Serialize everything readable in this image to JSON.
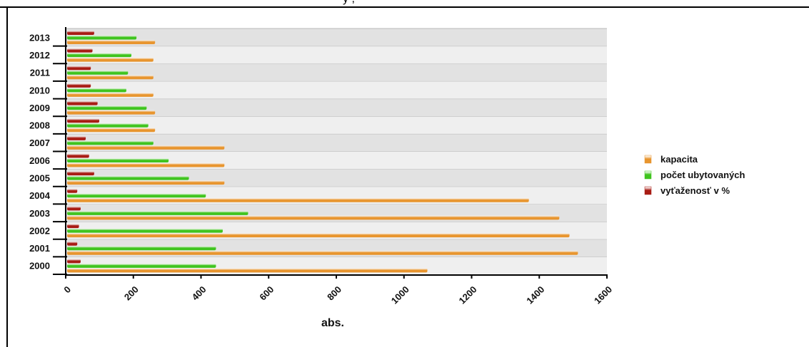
{
  "window": {
    "title_fragment": "y    ,",
    "border_color": "#000000"
  },
  "chart_data": {
    "type": "bar",
    "orientation": "horizontal",
    "categories": [
      "2000",
      "2001",
      "2002",
      "2003",
      "2004",
      "2005",
      "2006",
      "2007",
      "2008",
      "2009",
      "2010",
      "2011",
      "2012",
      "2013"
    ],
    "series": [
      {
        "name": "kapacita",
        "color": "#e8952e",
        "values": [
          1065,
          1510,
          1485,
          1455,
          1365,
          465,
          465,
          465,
          260,
          260,
          255,
          255,
          255,
          260
        ]
      },
      {
        "name": "počet ubytovaných",
        "color": "#3fc41e",
        "values": [
          440,
          440,
          460,
          535,
          410,
          360,
          300,
          255,
          240,
          235,
          175,
          180,
          190,
          205
        ]
      },
      {
        "name": "vyťaženosť v %",
        "color": "#a81c14",
        "values": [
          40,
          30,
          35,
          40,
          30,
          80,
          65,
          55,
          95,
          90,
          70,
          70,
          75,
          80
        ]
      }
    ],
    "xlabel": "abs.",
    "ylabel": "",
    "xlim": [
      0,
      1600
    ],
    "xticks": [
      "0",
      "200",
      "400",
      "600",
      "800",
      "1000",
      "1200",
      "1400",
      "1600"
    ],
    "grid": true,
    "legend_position": "right"
  }
}
